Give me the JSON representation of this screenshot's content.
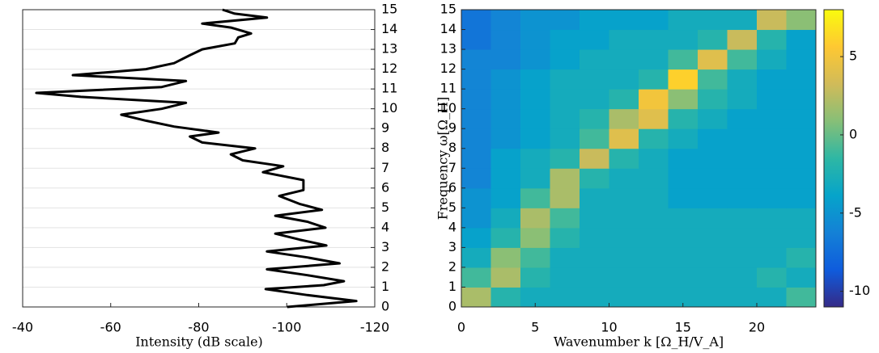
{
  "chart_data": [
    {
      "type": "line",
      "xlabel": "Intensity (dB scale)",
      "y": [
        0,
        0.3,
        0.6,
        0.9,
        1.1,
        1.3,
        1.6,
        1.9,
        2.2,
        2.5,
        2.8,
        3.1,
        3.4,
        3.7,
        4.0,
        4.3,
        4.6,
        4.9,
        5.2,
        5.6,
        5.9,
        6.2,
        6.4,
        6.8,
        7.1,
        7.4,
        7.7,
        8.0,
        8.3,
        8.6,
        8.8,
        9.1,
        9.4,
        9.7,
        10.0,
        10.3,
        10.6,
        10.8,
        11.1,
        11.4,
        11.7,
        12.0,
        12.3,
        12.7,
        13.0,
        13.3,
        13.6,
        13.8,
        14.1,
        14.3,
        14.6,
        14.8,
        15.0
      ],
      "series": [
        {
          "color": "#000000",
          "values": [
            -100.1,
            -115.8,
            -104.7,
            -95.2,
            -108.4,
            -113,
            -104.7,
            -95.5,
            -112,
            -104.7,
            -95.5,
            -109,
            -102.9,
            -97.4,
            -108.8,
            -104.7,
            -97.4,
            -108,
            -102.9,
            -98.3,
            -103.8,
            -103.8,
            -103.8,
            -94.6,
            -99.2,
            -90,
            -87.3,
            -92.8,
            -80.8,
            -78,
            -84.5,
            -74.4,
            -68,
            -62.4,
            -71.6,
            -77.1,
            -53.2,
            -43.1,
            -71.6,
            -77.1,
            -51.4,
            -68,
            -74.4,
            -78,
            -80.8,
            -88.2,
            -89,
            -91.9,
            -87.3,
            -80.8,
            -95.5,
            -88.2,
            -85.4
          ]
        }
      ],
      "xlim": [
        -40,
        -120
      ],
      "xticks": [
        -40,
        -60,
        -80,
        -100,
        -120
      ],
      "ylim": [
        0,
        15
      ],
      "yticks": [
        0,
        1,
        2,
        3,
        4,
        5,
        6,
        7,
        8,
        9,
        10,
        11,
        12,
        13,
        14,
        15
      ],
      "grid": true
    },
    {
      "type": "heatmap",
      "xlabel": "Wavenumber k [Ω_H/V_A]",
      "ylabel": "Frequency ω[Ω_H]",
      "x": [
        1,
        3,
        5,
        7,
        9,
        11,
        13,
        15,
        17,
        19,
        21,
        23
      ],
      "y": [
        0.5,
        1.5,
        2.5,
        3.5,
        4.5,
        5.5,
        6.5,
        7.5,
        8.5,
        9.5,
        10.5,
        11.5,
        12.5,
        13.5,
        14.5
      ],
      "z": [
        [
          2,
          -2,
          -3,
          -3,
          -3,
          -3,
          -3,
          -3,
          -3,
          -3,
          -3,
          -1
        ],
        [
          -1,
          2,
          -2,
          -3,
          -3,
          -3,
          -3,
          -3,
          -3,
          -3,
          -2,
          -3
        ],
        [
          -3,
          1,
          -1,
          -3,
          -3,
          -3,
          -3,
          -3,
          -3,
          -3,
          -3,
          -2
        ],
        [
          -4,
          -2,
          1,
          -2,
          -3,
          -3,
          -3,
          -3,
          -3,
          -3,
          -3,
          -3
        ],
        [
          -5,
          -3,
          2,
          -1,
          -3,
          -3,
          -3,
          -3,
          -3,
          -3,
          -3,
          -3
        ],
        [
          -5,
          -4,
          -1,
          2,
          -3,
          -3,
          -3,
          -4,
          -4,
          -4,
          -4,
          -4
        ],
        [
          -6,
          -4,
          -3,
          2,
          -2,
          -3,
          -3,
          -4,
          -4,
          -4,
          -4,
          -4
        ],
        [
          -6,
          -4,
          -3,
          -2,
          3,
          -2,
          -3,
          -4,
          -4,
          -4,
          -4,
          -4
        ],
        [
          -6,
          -5,
          -4,
          -3,
          -1,
          4,
          -2,
          -3,
          -4,
          -4,
          -4,
          -4
        ],
        [
          -6,
          -5,
          -4,
          -3,
          -2,
          2,
          4,
          -2,
          -3,
          -4,
          -4,
          -4
        ],
        [
          -6,
          -5,
          -4,
          -3,
          -3,
          -2,
          5,
          1,
          -2,
          -3,
          -4,
          -4
        ],
        [
          -6,
          -5,
          -4,
          -3,
          -3,
          -3,
          -2,
          6,
          -1,
          -3,
          -4,
          -4
        ],
        [
          -6,
          -6,
          -5,
          -4,
          -3,
          -3,
          -3,
          -1,
          4,
          -1,
          -3,
          -4
        ],
        [
          -7,
          -6,
          -5,
          -4,
          -4,
          -3,
          -3,
          -3,
          -2,
          3,
          -2,
          -4
        ],
        [
          -7,
          -6,
          -5,
          -5,
          -4,
          -4,
          -4,
          -3,
          -3,
          -3,
          3,
          1
        ]
      ],
      "xlim": [
        0,
        24
      ],
      "xticks": [
        0,
        5,
        10,
        15,
        20
      ],
      "ylim": [
        0,
        15
      ],
      "yticks": [
        0,
        1,
        2,
        3,
        4,
        5,
        6,
        7,
        8,
        9,
        10,
        11,
        12,
        13,
        14,
        15
      ],
      "clim": [
        -11,
        8
      ],
      "cticks": [
        -10,
        -5,
        0,
        5
      ],
      "colormap": [
        "#352a87",
        "#0f5cdd",
        "#1481d6",
        "#06a4ca",
        "#2eb7a4",
        "#87bf77",
        "#d1bb59",
        "#fec832",
        "#f9fb0e"
      ]
    }
  ]
}
